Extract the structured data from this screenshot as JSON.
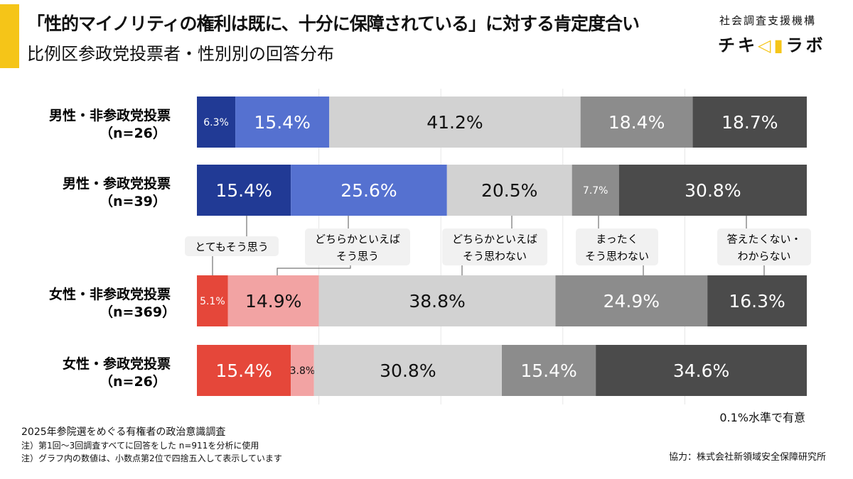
{
  "header": {
    "title": "「性的マイノリティの権利は既に、十分に保障されている」に対する肯定度合い",
    "subtitle": "比例区参政党投票者・性別別の回答分布",
    "org": "社会調査支援機構",
    "logo": "チキ◁ラボ"
  },
  "colors": {
    "male": [
      "#213a95",
      "#5571d0",
      "#d2d2d2",
      "#8c8c8c",
      "#4b4b4b"
    ],
    "female": [
      "#e5473a",
      "#f2a3a3",
      "#d2d2d2",
      "#8c8c8c",
      "#4b4b4b"
    ]
  },
  "chart_data": {
    "type": "stacked-bar-horizontal",
    "xlim": [
      0,
      100
    ],
    "grid": true,
    "categories": [
      "どちらかといえば/そう思う"
    ],
    "legend": [
      "とてもそう思う",
      "どちらかといえば\nそう思う",
      "どちらかといえば\nそう思わない",
      "まったく\nそう思わない",
      "答えたくない・\nわからない"
    ],
    "rows": [
      {
        "label": "男性・非参政党投票",
        "n": "（n=26）",
        "group": "male",
        "values": [
          6.3,
          15.4,
          41.2,
          18.4,
          18.7
        ]
      },
      {
        "label": "男性・参政党投票",
        "n": "（n=39）",
        "group": "male",
        "values": [
          15.4,
          25.6,
          20.5,
          7.7,
          30.8
        ]
      },
      {
        "label": "女性・非参政党投票",
        "n": "（n=369）",
        "group": "female",
        "values": [
          5.1,
          14.9,
          38.8,
          24.9,
          16.3
        ]
      },
      {
        "label": "女性・参政党投票",
        "n": "（n=26）",
        "group": "female",
        "values": [
          15.4,
          3.8,
          30.8,
          15.4,
          34.6
        ]
      }
    ],
    "significance": "0.1%水準で有意"
  },
  "footer": {
    "survey": "2025年参院選をめぐる有権者の政治意識調査",
    "note1": "注）第1回～3回調査すべてに回答をした n=911を分析に使用",
    "note2": "注）グラフ内の数値は、小数点第2位で四捨五入して表示しています",
    "credit": "協力：株式会社新領域安全保障研究所"
  }
}
